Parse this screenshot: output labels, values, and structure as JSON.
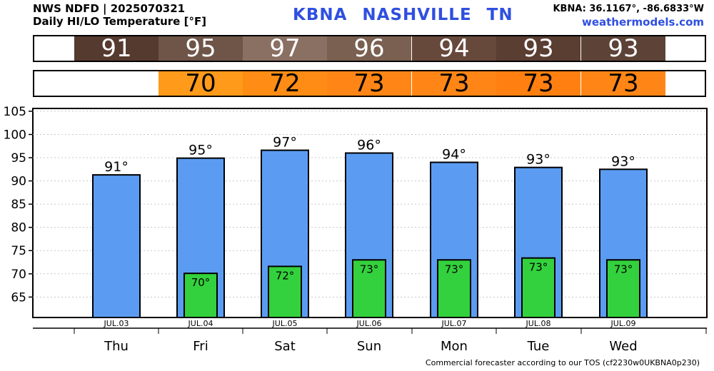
{
  "header": {
    "line1": "NWS NDFD | 2025070321",
    "line2": "Daily HI/LO Temperature [°F]",
    "station": "KBNA  NASHVILLE    TN",
    "coords": "KBNA: 36.1167°, -86.6833°W",
    "site": "weathermodels.com"
  },
  "footer": "Commercial forecaster according to our TOS (cf2230w0UKBNA0p230)",
  "strips": {
    "hi_colors": [
      "#553a2f",
      "#6e5548",
      "#8a7062",
      "#7a6050",
      "#67493c",
      "#5a3e32",
      "#5d4337"
    ],
    "lo_colors": [
      "#ff9a1a",
      "#ff8c14",
      "#ff8616",
      "#ff8616",
      "#ff7f10",
      "#ff8616"
    ]
  },
  "chart_data": {
    "type": "bar",
    "dates": [
      "JUL.03",
      "JUL.04",
      "JUL.05",
      "JUL.06",
      "JUL.07",
      "JUL.08",
      "JUL.09"
    ],
    "categories": [
      "Thu",
      "Fri",
      "Sat",
      "Sun",
      "Mon",
      "Tue",
      "Wed"
    ],
    "series": [
      {
        "values": [
          91.3,
          94.9,
          96.6,
          96.0,
          94.0,
          92.9,
          92.5
        ],
        "labels": [
          "91°",
          "95°",
          "97°",
          "96°",
          "94°",
          "93°",
          "93°"
        ],
        "color": "#5b9cf2"
      },
      {
        "values": [
          null,
          70.1,
          71.6,
          73.0,
          73.0,
          73.4,
          73.0
        ],
        "labels": [
          "",
          "70°",
          "72°",
          "73°",
          "73°",
          "73°",
          "73°"
        ],
        "color": "#33d13d"
      }
    ],
    "hi_strip_values": [
      "91",
      "95",
      "97",
      "96",
      "94",
      "93",
      "93"
    ],
    "lo_strip_values": [
      "",
      "70",
      "72",
      "73",
      "73",
      "73",
      "73"
    ],
    "yticks": [
      "65",
      "70",
      "75",
      "80",
      "85",
      "90",
      "95",
      "100",
      "105"
    ],
    "ylim": [
      60.6,
      105.6
    ],
    "grid": true
  }
}
